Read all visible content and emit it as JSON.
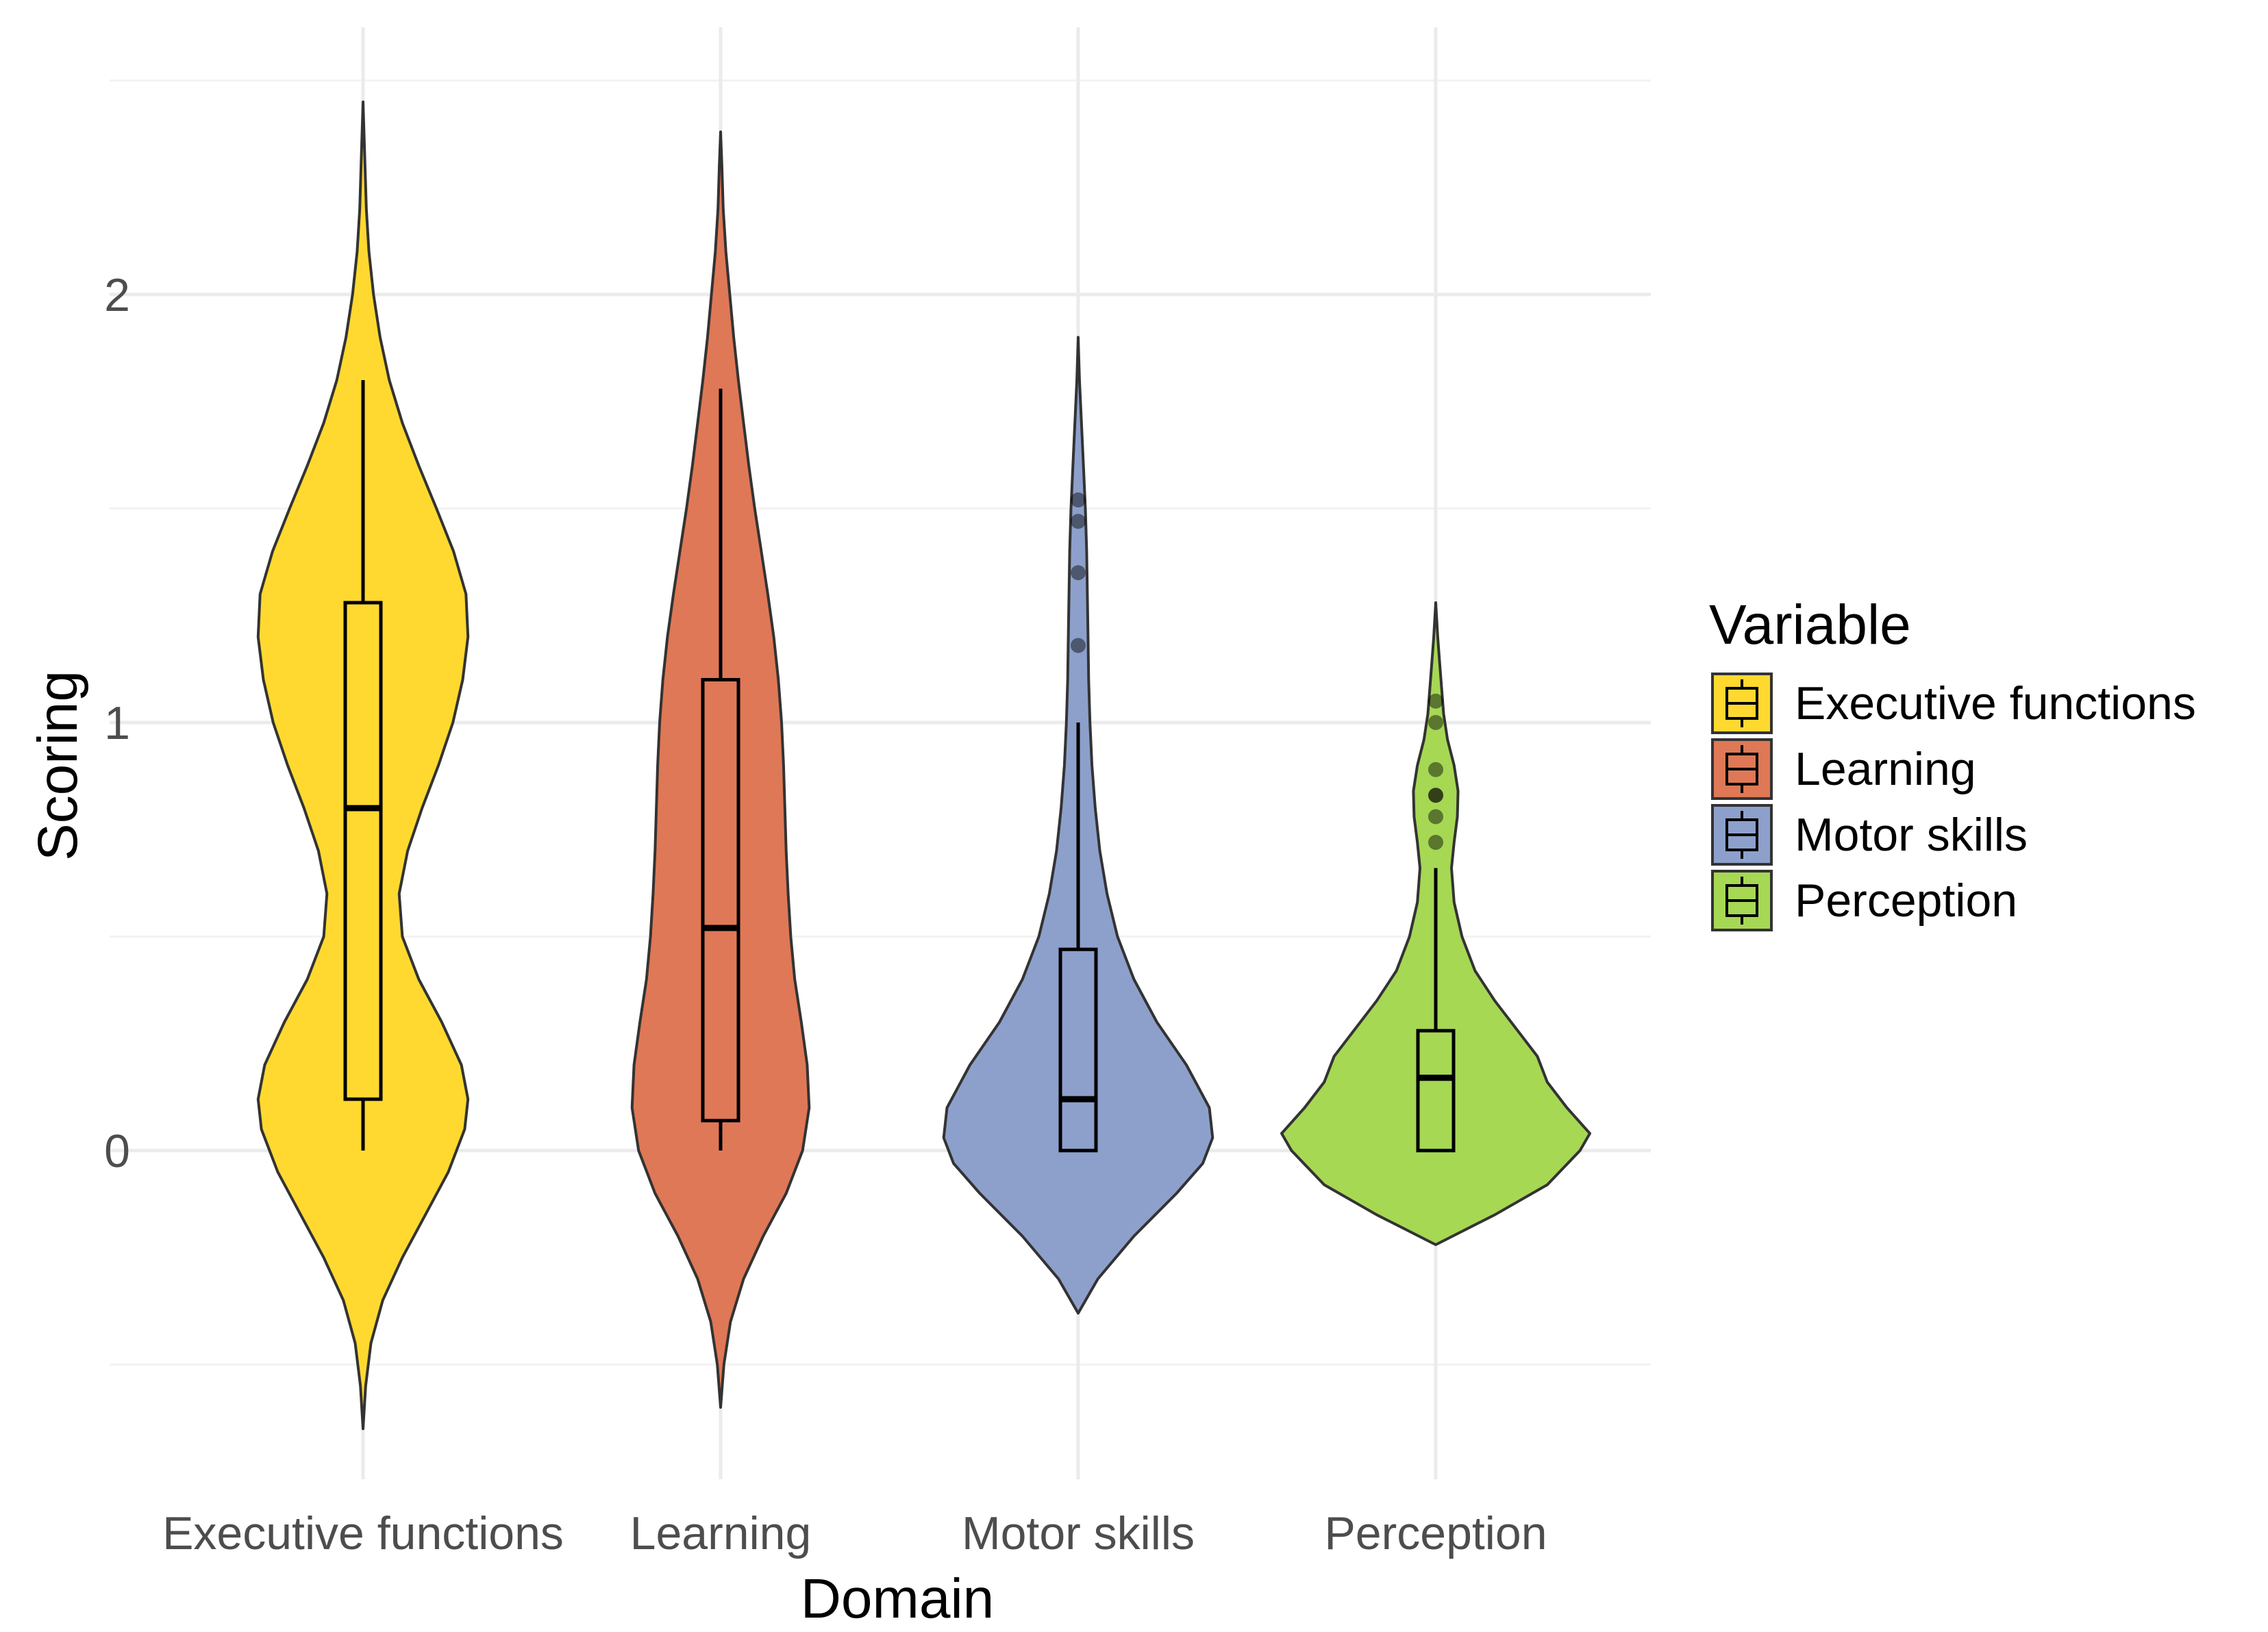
{
  "chart_data": {
    "type": "violin",
    "title": "",
    "xlabel": "Domain",
    "ylabel": "Scoring",
    "ylim": [
      -0.72,
      2.6
    ],
    "y_ticks": [
      0,
      1,
      2
    ],
    "grid": true,
    "legend": {
      "title": "Variable",
      "position": "right"
    },
    "categories": [
      "Executive functions",
      "Learning",
      "Motor skills",
      "Perception"
    ],
    "series": [
      {
        "name": "Executive functions",
        "color": "#FFD92F",
        "box": {
          "whisker_low": 0.0,
          "q1": 0.12,
          "median": 0.8,
          "q3": 1.28,
          "whisker_high": 1.8
        },
        "outliers": [],
        "violin_range": [
          -0.65,
          2.45
        ],
        "violin_profile": [
          [
            -0.65,
            0.0
          ],
          [
            -0.55,
            0.004
          ],
          [
            -0.45,
            0.012
          ],
          [
            -0.35,
            0.03
          ],
          [
            -0.25,
            0.06
          ],
          [
            -0.15,
            0.095
          ],
          [
            -0.05,
            0.13
          ],
          [
            0.05,
            0.155
          ],
          [
            0.12,
            0.16
          ],
          [
            0.2,
            0.15
          ],
          [
            0.3,
            0.12
          ],
          [
            0.4,
            0.085
          ],
          [
            0.5,
            0.06
          ],
          [
            0.6,
            0.055
          ],
          [
            0.7,
            0.068
          ],
          [
            0.8,
            0.09
          ],
          [
            0.9,
            0.115
          ],
          [
            1.0,
            0.137
          ],
          [
            1.1,
            0.152
          ],
          [
            1.2,
            0.16
          ],
          [
            1.3,
            0.157
          ],
          [
            1.4,
            0.138
          ],
          [
            1.5,
            0.112
          ],
          [
            1.6,
            0.085
          ],
          [
            1.7,
            0.06
          ],
          [
            1.8,
            0.04
          ],
          [
            1.9,
            0.026
          ],
          [
            2.0,
            0.016
          ],
          [
            2.1,
            0.009
          ],
          [
            2.2,
            0.005
          ],
          [
            2.3,
            0.003
          ],
          [
            2.45,
            0.0
          ]
        ]
      },
      {
        "name": "Learning",
        "color": "#DF7856",
        "box": {
          "whisker_low": 0.0,
          "q1": 0.07,
          "median": 0.52,
          "q3": 1.1,
          "whisker_high": 1.78
        },
        "outliers": [],
        "violin_range": [
          -0.6,
          2.38
        ],
        "violin_profile": [
          [
            -0.6,
            0.0
          ],
          [
            -0.5,
            0.005
          ],
          [
            -0.4,
            0.015
          ],
          [
            -0.3,
            0.035
          ],
          [
            -0.2,
            0.065
          ],
          [
            -0.1,
            0.1
          ],
          [
            0.0,
            0.125
          ],
          [
            0.1,
            0.135
          ],
          [
            0.2,
            0.132
          ],
          [
            0.3,
            0.123
          ],
          [
            0.4,
            0.113
          ],
          [
            0.5,
            0.107
          ],
          [
            0.6,
            0.103
          ],
          [
            0.7,
            0.1
          ],
          [
            0.8,
            0.098
          ],
          [
            0.9,
            0.096
          ],
          [
            1.0,
            0.093
          ],
          [
            1.1,
            0.088
          ],
          [
            1.2,
            0.081
          ],
          [
            1.3,
            0.072
          ],
          [
            1.4,
            0.062
          ],
          [
            1.5,
            0.052
          ],
          [
            1.6,
            0.043
          ],
          [
            1.7,
            0.035
          ],
          [
            1.8,
            0.027
          ],
          [
            1.9,
            0.02
          ],
          [
            2.0,
            0.014
          ],
          [
            2.1,
            0.008
          ],
          [
            2.2,
            0.004
          ],
          [
            2.3,
            0.002
          ],
          [
            2.38,
            0.0
          ]
        ]
      },
      {
        "name": "Motor skills",
        "color": "#8DA0CB",
        "box": {
          "whisker_low": 0.0,
          "q1": 0.0,
          "median": 0.12,
          "q3": 0.47,
          "whisker_high": 1.0
        },
        "outliers": [
          1.18,
          1.35,
          1.47,
          1.52
        ],
        "violin_range": [
          -0.38,
          1.9
        ],
        "violin_profile": [
          [
            -0.38,
            0.0
          ],
          [
            -0.3,
            0.03
          ],
          [
            -0.2,
            0.085
          ],
          [
            -0.1,
            0.15
          ],
          [
            -0.03,
            0.19
          ],
          [
            0.03,
            0.205
          ],
          [
            0.1,
            0.2
          ],
          [
            0.2,
            0.165
          ],
          [
            0.3,
            0.12
          ],
          [
            0.4,
            0.085
          ],
          [
            0.5,
            0.06
          ],
          [
            0.6,
            0.044
          ],
          [
            0.7,
            0.033
          ],
          [
            0.8,
            0.026
          ],
          [
            0.9,
            0.021
          ],
          [
            1.0,
            0.018
          ],
          [
            1.1,
            0.016
          ],
          [
            1.2,
            0.015
          ],
          [
            1.3,
            0.014
          ],
          [
            1.4,
            0.013
          ],
          [
            1.5,
            0.011
          ],
          [
            1.6,
            0.008
          ],
          [
            1.7,
            0.005
          ],
          [
            1.8,
            0.002
          ],
          [
            1.9,
            0.0
          ]
        ]
      },
      {
        "name": "Perception",
        "color": "#A6D854",
        "box": {
          "whisker_low": 0.0,
          "q1": 0.0,
          "median": 0.17,
          "q3": 0.28,
          "whisker_high": 0.66
        },
        "outliers": [
          0.72,
          0.78,
          0.83,
          0.83,
          0.89,
          1.0,
          1.05
        ],
        "violin_range": [
          -0.22,
          1.28
        ],
        "violin_profile": [
          [
            -0.22,
            0.0
          ],
          [
            -0.15,
            0.09
          ],
          [
            -0.08,
            0.17
          ],
          [
            0.0,
            0.22
          ],
          [
            0.04,
            0.235
          ],
          [
            0.1,
            0.2
          ],
          [
            0.16,
            0.17
          ],
          [
            0.22,
            0.155
          ],
          [
            0.28,
            0.125
          ],
          [
            0.35,
            0.09
          ],
          [
            0.42,
            0.06
          ],
          [
            0.5,
            0.04
          ],
          [
            0.58,
            0.028
          ],
          [
            0.66,
            0.024
          ],
          [
            0.72,
            0.028
          ],
          [
            0.78,
            0.033
          ],
          [
            0.84,
            0.034
          ],
          [
            0.9,
            0.028
          ],
          [
            0.96,
            0.018
          ],
          [
            1.02,
            0.012
          ],
          [
            1.08,
            0.009
          ],
          [
            1.14,
            0.006
          ],
          [
            1.2,
            0.003
          ],
          [
            1.28,
            0.0
          ]
        ]
      }
    ]
  }
}
